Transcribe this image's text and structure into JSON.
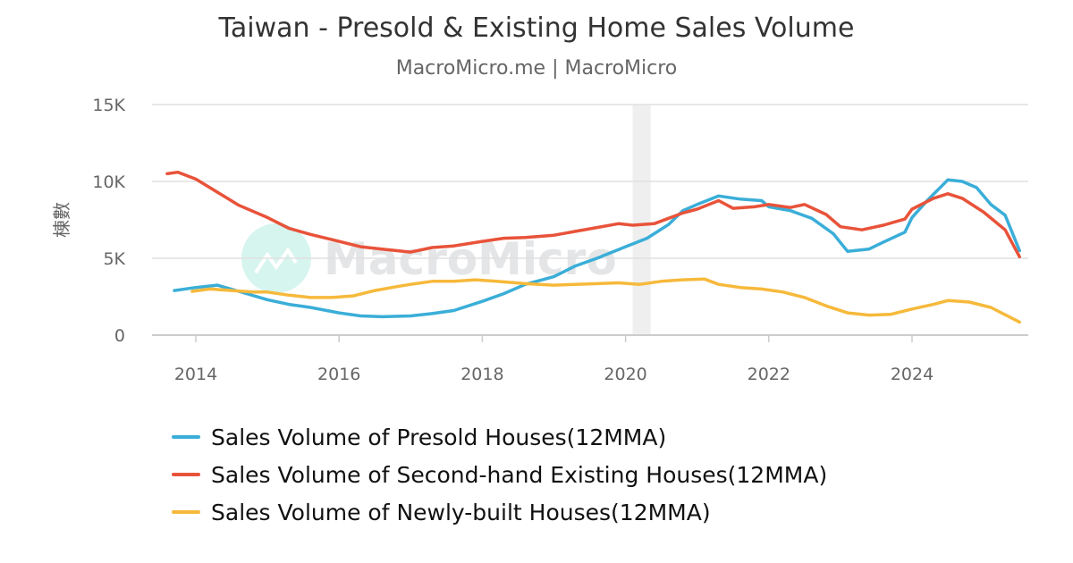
{
  "chart_data": {
    "type": "line",
    "title": "Taiwan - Presold & Existing Home Sales Volume",
    "subtitle": "MacroMicro.me | MacroMicro",
    "ylabel": "棟數",
    "xlabel": "",
    "xlim": [
      2013.4,
      2025.65
    ],
    "ylim": [
      0,
      15000
    ],
    "yticks": [
      {
        "v": 0,
        "label": "0"
      },
      {
        "v": 5000,
        "label": "5K"
      },
      {
        "v": 10000,
        "label": "10K"
      },
      {
        "v": 15000,
        "label": "15K"
      }
    ],
    "xticks": [
      {
        "v": 2014,
        "label": "2014"
      },
      {
        "v": 2016,
        "label": "2016"
      },
      {
        "v": 2018,
        "label": "2018"
      },
      {
        "v": 2020,
        "label": "2020"
      },
      {
        "v": 2022,
        "label": "2022"
      },
      {
        "v": 2024,
        "label": "2024"
      }
    ],
    "grid": true,
    "legend_position": "bottom",
    "shaded_band": [
      2020.1,
      2020.35
    ],
    "watermark": "MacroMicro",
    "series": [
      {
        "name": "Sales Volume of Presold Houses(12MMA)",
        "color": "#3aaed8",
        "x": [
          2013.7,
          2014.0,
          2014.3,
          2014.6,
          2015.0,
          2015.3,
          2015.6,
          2016.0,
          2016.3,
          2016.6,
          2017.0,
          2017.3,
          2017.6,
          2018.0,
          2018.3,
          2018.6,
          2019.0,
          2019.3,
          2019.6,
          2020.0,
          2020.3,
          2020.6,
          2020.8,
          2021.0,
          2021.3,
          2021.6,
          2021.9,
          2022.0,
          2022.3,
          2022.6,
          2022.9,
          2023.1,
          2023.4,
          2023.6,
          2023.9,
          2024.0,
          2024.2,
          2024.5,
          2024.7,
          2024.9,
          2025.1,
          2025.3,
          2025.5
        ],
        "y": [
          2900,
          3100,
          3250,
          2850,
          2300,
          2000,
          1800,
          1450,
          1250,
          1200,
          1250,
          1400,
          1600,
          2200,
          2700,
          3300,
          3800,
          4500,
          5000,
          5750,
          6300,
          7200,
          8100,
          8500,
          9050,
          8850,
          8750,
          8350,
          8100,
          7600,
          6600,
          5450,
          5600,
          6050,
          6700,
          7650,
          8700,
          10100,
          10000,
          9600,
          8500,
          7800,
          5500
        ]
      },
      {
        "name": "Sales Volume of Second-hand Existing Houses(12MMA)",
        "color": "#e8533a",
        "x": [
          2013.6,
          2013.75,
          2014.0,
          2014.3,
          2014.6,
          2015.0,
          2015.3,
          2015.6,
          2016.0,
          2016.3,
          2016.6,
          2017.0,
          2017.3,
          2017.6,
          2018.0,
          2018.3,
          2018.6,
          2019.0,
          2019.3,
          2019.6,
          2019.9,
          2020.1,
          2020.4,
          2020.6,
          2020.8,
          2021.0,
          2021.3,
          2021.5,
          2021.8,
          2022.0,
          2022.3,
          2022.5,
          2022.8,
          2023.0,
          2023.3,
          2023.6,
          2023.9,
          2024.0,
          2024.3,
          2024.5,
          2024.7,
          2025.0,
          2025.3,
          2025.5
        ],
        "y": [
          10500,
          10600,
          10150,
          9300,
          8450,
          7650,
          6950,
          6550,
          6100,
          5750,
          5600,
          5400,
          5700,
          5800,
          6100,
          6300,
          6350,
          6500,
          6750,
          7000,
          7250,
          7150,
          7250,
          7600,
          7950,
          8200,
          8750,
          8250,
          8350,
          8500,
          8300,
          8500,
          7850,
          7050,
          6850,
          7150,
          7550,
          8200,
          8900,
          9200,
          8900,
          8000,
          6850,
          5100
        ]
      },
      {
        "name": "Sales Volume of Newly-built Houses(12MMA)",
        "color": "#f6b93b",
        "x": [
          2013.95,
          2014.2,
          2014.5,
          2014.8,
          2015.0,
          2015.3,
          2015.6,
          2015.9,
          2016.2,
          2016.5,
          2016.8,
          2017.0,
          2017.3,
          2017.6,
          2017.9,
          2018.2,
          2018.6,
          2019.0,
          2019.3,
          2019.6,
          2019.9,
          2020.2,
          2020.5,
          2020.8,
          2021.1,
          2021.3,
          2021.6,
          2021.9,
          2022.2,
          2022.5,
          2022.8,
          2023.1,
          2023.4,
          2023.7,
          2024.0,
          2024.3,
          2024.5,
          2024.8,
          2025.1,
          2025.5
        ],
        "y": [
          2850,
          3000,
          2900,
          2800,
          2800,
          2600,
          2450,
          2450,
          2550,
          2900,
          3150,
          3300,
          3500,
          3500,
          3600,
          3500,
          3350,
          3250,
          3300,
          3350,
          3400,
          3300,
          3500,
          3600,
          3650,
          3300,
          3100,
          3000,
          2800,
          2450,
          1900,
          1450,
          1300,
          1350,
          1700,
          2000,
          2250,
          2150,
          1800,
          850
        ]
      }
    ]
  }
}
